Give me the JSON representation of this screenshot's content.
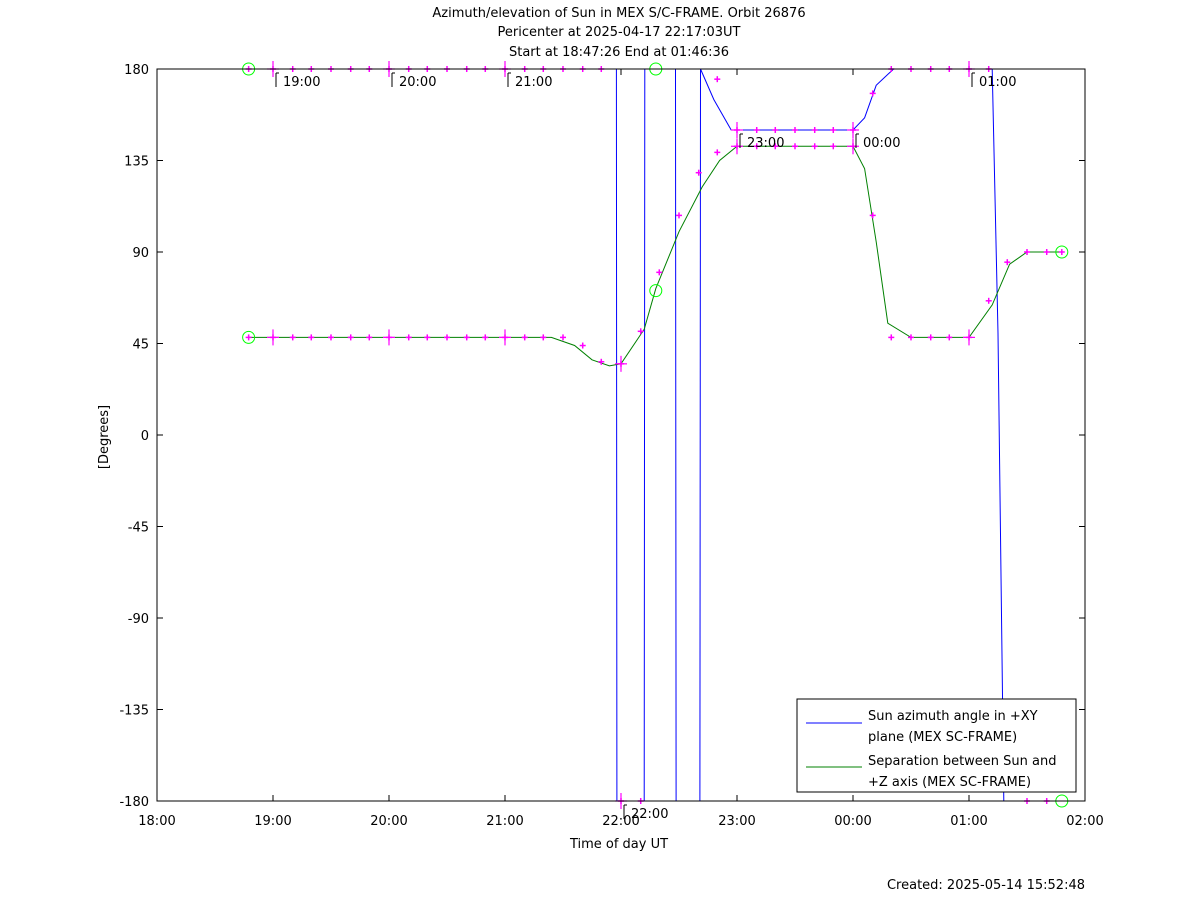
{
  "chart_data": {
    "type": "line",
    "title_lines": [
      "Azimuth/elevation of Sun in MEX S/C-FRAME.  Orbit 26876",
      "Pericenter at 2025-04-17 22:17:03UT",
      "Start at 18:47:26 End at 01:46:36"
    ],
    "xlabel": "Time of day UT",
    "ylabel": "[Degrees]",
    "footer": "Created: 2025-05-14 15:52:48",
    "xlim": [
      18.0,
      26.0
    ],
    "ylim": [
      -180,
      180
    ],
    "xticks": [
      {
        "v": 18,
        "label": "18:00"
      },
      {
        "v": 19,
        "label": "19:00"
      },
      {
        "v": 20,
        "label": "20:00"
      },
      {
        "v": 21,
        "label": "21:00"
      },
      {
        "v": 22,
        "label": "22:00"
      },
      {
        "v": 23,
        "label": "23:00"
      },
      {
        "v": 24,
        "label": "00:00"
      },
      {
        "v": 25,
        "label": "01:00"
      },
      {
        "v": 26,
        "label": "02:00"
      }
    ],
    "yticks": [
      {
        "v": 180,
        "label": "180"
      },
      {
        "v": 135,
        "label": "135"
      },
      {
        "v": 90,
        "label": "90"
      },
      {
        "v": 45,
        "label": "45"
      },
      {
        "v": 0,
        "label": "0"
      },
      {
        "v": -45,
        "label": "-45"
      },
      {
        "v": -90,
        "label": "-90"
      },
      {
        "v": -135,
        "label": "-135"
      },
      {
        "v": -180,
        "label": "-180"
      }
    ],
    "legend_position": "bottom-right",
    "series": [
      {
        "name": "Sun azimuth angle in +XY plane (MEX SC-FRAME)",
        "legend_lines": [
          "Sun azimuth angle in +XY",
          "plane (MEX SC-FRAME)"
        ],
        "color": "#0000ff",
        "x": [
          18.79,
          19.0,
          20.0,
          21.0,
          21.78,
          21.96,
          21.965,
          22.2,
          22.205,
          22.23,
          22.47,
          22.475,
          22.68,
          22.685,
          22.8,
          22.95,
          23.3,
          23.7,
          24.0,
          24.1,
          24.2,
          24.35,
          25.0,
          25.2,
          25.25,
          25.3,
          25.8
        ],
        "y": [
          180,
          180,
          180,
          180,
          180,
          180,
          -180,
          -180,
          180,
          180,
          180,
          -180,
          -180,
          180,
          165,
          150,
          150,
          150,
          150,
          156,
          172,
          180,
          180,
          180,
          50,
          -180,
          -180
        ]
      },
      {
        "name": "Separation between Sun and +Z axis (MEX SC-FRAME)",
        "legend_lines": [
          "Separation between Sun and",
          "+Z axis (MEX SC-FRAME)"
        ],
        "color": "#008000",
        "x": [
          18.79,
          19.0,
          19.5,
          20.0,
          20.5,
          21.0,
          21.4,
          21.6,
          21.75,
          21.9,
          22.0,
          22.2,
          22.3,
          22.5,
          22.7,
          22.85,
          23.0,
          23.5,
          24.0,
          24.1,
          24.2,
          24.3,
          24.5,
          25.0,
          25.2,
          25.35,
          25.5,
          25.8
        ],
        "y": [
          48,
          48,
          48,
          48,
          48,
          48,
          48,
          44,
          37,
          34,
          35,
          52,
          72,
          100,
          122,
          135,
          142,
          142,
          142,
          131,
          95,
          55,
          48,
          48,
          64,
          84,
          90,
          90
        ]
      }
    ],
    "markers": {
      "point_color": "#ff00ff",
      "boundary_color": "#00ff00",
      "az_points": [
        [
          18.79,
          180
        ],
        [
          19.0,
          180
        ],
        [
          19.17,
          180
        ],
        [
          19.33,
          180
        ],
        [
          19.5,
          180
        ],
        [
          19.67,
          180
        ],
        [
          19.83,
          180
        ],
        [
          20.0,
          180
        ],
        [
          20.17,
          180
        ],
        [
          20.33,
          180
        ],
        [
          20.5,
          180
        ],
        [
          20.67,
          180
        ],
        [
          20.83,
          180
        ],
        [
          21.0,
          180
        ],
        [
          21.17,
          180
        ],
        [
          21.33,
          180
        ],
        [
          21.5,
          180
        ],
        [
          21.67,
          180
        ],
        [
          21.83,
          180
        ],
        [
          22.0,
          -180
        ],
        [
          22.17,
          -180
        ],
        [
          22.83,
          175
        ],
        [
          23.0,
          150
        ],
        [
          23.17,
          150
        ],
        [
          23.33,
          150
        ],
        [
          23.5,
          150
        ],
        [
          23.67,
          150
        ],
        [
          23.83,
          150
        ],
        [
          24.0,
          150
        ],
        [
          24.17,
          168
        ],
        [
          24.33,
          180
        ],
        [
          24.5,
          180
        ],
        [
          24.67,
          180
        ],
        [
          24.83,
          180
        ],
        [
          25.0,
          180
        ],
        [
          25.17,
          180
        ],
        [
          25.5,
          -180
        ],
        [
          25.67,
          -180
        ]
      ],
      "sep_points": [
        [
          18.79,
          48
        ],
        [
          19.0,
          48
        ],
        [
          19.17,
          48
        ],
        [
          19.33,
          48
        ],
        [
          19.5,
          48
        ],
        [
          19.67,
          48
        ],
        [
          19.83,
          48
        ],
        [
          20.0,
          48
        ],
        [
          20.17,
          48
        ],
        [
          20.33,
          48
        ],
        [
          20.5,
          48
        ],
        [
          20.67,
          48
        ],
        [
          20.83,
          48
        ],
        [
          21.0,
          48
        ],
        [
          21.17,
          48
        ],
        [
          21.33,
          48
        ],
        [
          21.5,
          48
        ],
        [
          21.67,
          44
        ],
        [
          21.83,
          36
        ],
        [
          22.0,
          35
        ],
        [
          22.17,
          51
        ],
        [
          22.33,
          80
        ],
        [
          22.5,
          108
        ],
        [
          22.67,
          129
        ],
        [
          22.83,
          139
        ],
        [
          23.0,
          142
        ],
        [
          23.17,
          142
        ],
        [
          23.33,
          142
        ],
        [
          23.5,
          142
        ],
        [
          23.67,
          142
        ],
        [
          23.83,
          142
        ],
        [
          24.0,
          142
        ],
        [
          24.17,
          108
        ],
        [
          24.33,
          48
        ],
        [
          24.5,
          48
        ],
        [
          24.67,
          48
        ],
        [
          24.83,
          48
        ],
        [
          25.0,
          48
        ],
        [
          25.17,
          66
        ],
        [
          25.33,
          85
        ],
        [
          25.5,
          90
        ],
        [
          25.67,
          90
        ],
        [
          25.8,
          90
        ]
      ],
      "hour_ticks": [
        19,
        20,
        21,
        22,
        23,
        24,
        25
      ],
      "boundaries": [
        [
          18.79,
          180
        ],
        [
          18.79,
          48
        ],
        [
          22.3,
          180
        ],
        [
          22.3,
          71
        ],
        [
          25.8,
          90
        ],
        [
          25.8,
          -180
        ]
      ],
      "time_labels": [
        {
          "x": 19.0,
          "y": 180,
          "label": "19:00"
        },
        {
          "x": 20.0,
          "y": 180,
          "label": "20:00"
        },
        {
          "x": 21.0,
          "y": 180,
          "label": "21:00"
        },
        {
          "x": 22.0,
          "y": -180,
          "label": "22:00"
        },
        {
          "x": 23.0,
          "y": 150,
          "label": "23:00"
        },
        {
          "x": 24.0,
          "y": 150,
          "label": "00:00"
        },
        {
          "x": 25.0,
          "y": 180,
          "label": "01:00"
        }
      ]
    }
  }
}
